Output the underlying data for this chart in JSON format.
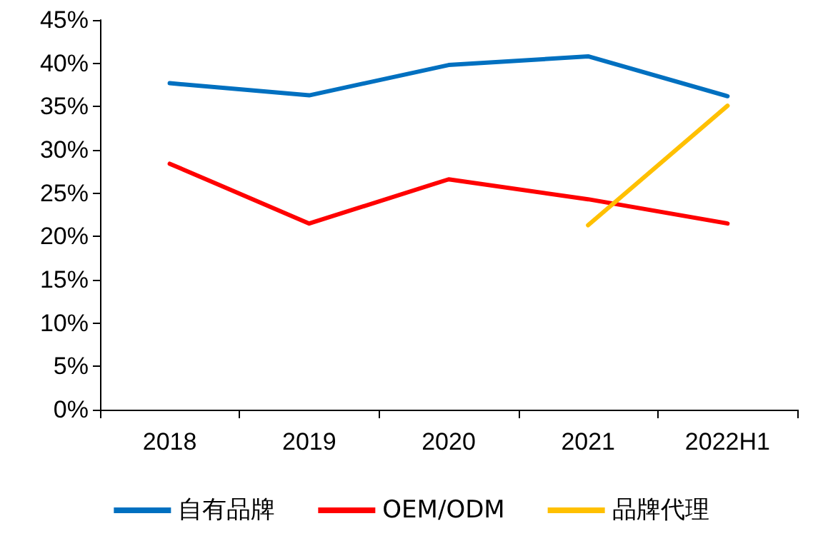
{
  "chart_data": {
    "type": "line",
    "categories": [
      "2018",
      "2019",
      "2020",
      "2021",
      "2022H1"
    ],
    "series": [
      {
        "name": "自有品牌",
        "color": "#0070c0",
        "values": [
          37.7,
          36.3,
          39.8,
          40.8,
          36.2
        ]
      },
      {
        "name": "OEM/ODM",
        "color": "#ff0000",
        "values": [
          28.4,
          21.5,
          26.6,
          24.3,
          21.5
        ]
      },
      {
        "name": "品牌代理",
        "color": "#ffc000",
        "values": [
          null,
          null,
          null,
          21.3,
          35.1
        ]
      }
    ],
    "ylim": [
      0,
      45
    ],
    "yticks": [
      {
        "value": 0,
        "label": "0%"
      },
      {
        "value": 5,
        "label": "5%"
      },
      {
        "value": 10,
        "label": "10%"
      },
      {
        "value": 15,
        "label": "15%"
      },
      {
        "value": 20,
        "label": "20%"
      },
      {
        "value": 25,
        "label": "25%"
      },
      {
        "value": 30,
        "label": "30%"
      },
      {
        "value": 35,
        "label": "35%"
      },
      {
        "value": 40,
        "label": "40%"
      },
      {
        "value": 45,
        "label": "45%"
      }
    ],
    "grid": false,
    "legend": "bottom",
    "marker": "none",
    "line_style": "solid"
  }
}
